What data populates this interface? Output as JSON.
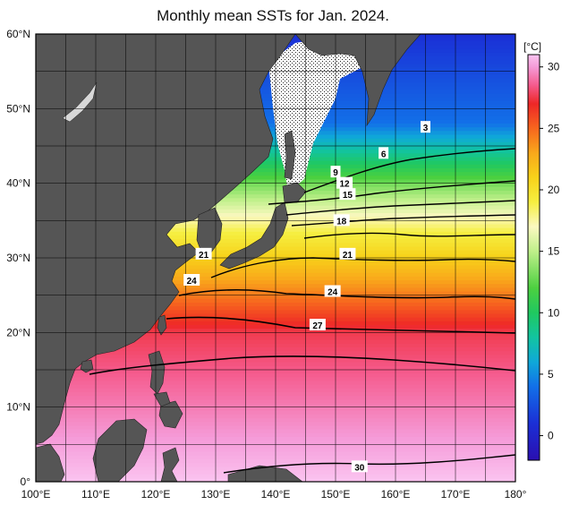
{
  "title": "Monthly mean SSTs for Jan. 2024.",
  "colorbar": {
    "unit": "[°C]",
    "ticks": [
      "30",
      "25",
      "20",
      "15",
      "10",
      "5",
      "0"
    ],
    "tick_values": [
      30,
      25,
      20,
      15,
      10,
      5,
      0
    ],
    "range": [
      -2,
      31
    ],
    "stops": [
      {
        "v": -2,
        "c": "#2a0fb0"
      },
      {
        "v": 1,
        "c": "#1b2fd6"
      },
      {
        "v": 4,
        "c": "#1270e8"
      },
      {
        "v": 6,
        "c": "#0fa8d8"
      },
      {
        "v": 8,
        "c": "#12c4a0"
      },
      {
        "v": 10,
        "c": "#20c860"
      },
      {
        "v": 12,
        "c": "#4cd040"
      },
      {
        "v": 15,
        "c": "#bff08a"
      },
      {
        "v": 17,
        "c": "#fbf8c0"
      },
      {
        "v": 19,
        "c": "#f6ee40"
      },
      {
        "v": 21,
        "c": "#f7d21a"
      },
      {
        "v": 23,
        "c": "#f9a81b"
      },
      {
        "v": 25,
        "c": "#f7661e"
      },
      {
        "v": 27,
        "c": "#ee2727"
      },
      {
        "v": 28.5,
        "c": "#f55a8c"
      },
      {
        "v": 30,
        "c": "#f59bd8"
      },
      {
        "v": 31,
        "c": "#fbc4f0"
      }
    ]
  },
  "axes": {
    "lon_labels": [
      "100°E",
      "110°E",
      "120°E",
      "130°E",
      "140°E",
      "150°E",
      "160°E",
      "170°E",
      "180°"
    ],
    "lon_values": [
      100,
      110,
      120,
      130,
      140,
      150,
      160,
      170,
      180
    ],
    "lat_labels": [
      "60°N",
      "50°N",
      "40°N",
      "30°N",
      "20°N",
      "10°N",
      "0°"
    ],
    "lat_values": [
      60,
      50,
      40,
      30,
      20,
      10,
      0
    ],
    "lon_range": [
      100,
      180
    ],
    "lat_range": [
      0,
      60
    ]
  },
  "contour_labels": [
    {
      "text": "3",
      "lon": 165,
      "lat": 47.5
    },
    {
      "text": "6",
      "lon": 158,
      "lat": 44
    },
    {
      "text": "9",
      "lon": 150,
      "lat": 41.5
    },
    {
      "text": "12",
      "lon": 151.5,
      "lat": 40
    },
    {
      "text": "15",
      "lon": 152,
      "lat": 38.5
    },
    {
      "text": "18",
      "lon": 151,
      "lat": 35
    },
    {
      "text": "21",
      "lon": 152,
      "lat": 30.5
    },
    {
      "text": "21",
      "lon": 128,
      "lat": 30.5
    },
    {
      "text": "24",
      "lon": 126,
      "lat": 27
    },
    {
      "text": "24",
      "lon": 149.5,
      "lat": 25.5
    },
    {
      "text": "27",
      "lon": 147,
      "lat": 21
    },
    {
      "text": "30",
      "lon": 154,
      "lat": 2
    }
  ],
  "colors": {
    "land": "#555555",
    "grid": "#000000",
    "frame": "#000000"
  }
}
